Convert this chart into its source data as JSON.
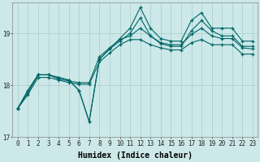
{
  "xlabel": "Humidex (Indice chaleur)",
  "bg_color": "#cce8e8",
  "line_color": "#006666",
  "grid_color": "#aacccc",
  "xlim": [
    -0.5,
    23.5
  ],
  "ylim": [
    17.0,
    19.6
  ],
  "yticks": [
    17,
    18,
    19
  ],
  "xtick_labels": [
    "0",
    "1",
    "2",
    "3",
    "4",
    "5",
    "6",
    "7",
    "8",
    "9",
    "10",
    "11",
    "12",
    "13",
    "14",
    "15",
    "16",
    "17",
    "18",
    "19",
    "20",
    "21",
    "22",
    "23"
  ],
  "series": [
    [
      17.55,
      17.9,
      18.2,
      18.2,
      18.15,
      18.1,
      17.9,
      17.3,
      18.5,
      18.7,
      18.9,
      19.1,
      19.5,
      19.1,
      18.9,
      18.85,
      18.85,
      19.25,
      19.4,
      19.1,
      19.1,
      19.1,
      18.85,
      18.85
    ],
    [
      17.55,
      17.9,
      18.2,
      18.2,
      18.15,
      18.1,
      17.9,
      17.3,
      18.5,
      18.7,
      18.85,
      19.0,
      19.3,
      18.95,
      18.8,
      18.75,
      18.75,
      19.05,
      19.25,
      19.05,
      18.95,
      18.95,
      18.75,
      18.75
    ],
    [
      17.55,
      17.85,
      18.2,
      18.2,
      18.12,
      18.08,
      18.05,
      18.05,
      18.55,
      18.72,
      18.88,
      18.95,
      19.1,
      18.95,
      18.82,
      18.78,
      18.78,
      18.98,
      19.1,
      18.95,
      18.9,
      18.9,
      18.72,
      18.7
    ],
    [
      17.55,
      17.82,
      18.15,
      18.15,
      18.1,
      18.05,
      18.02,
      18.02,
      18.45,
      18.62,
      18.78,
      18.88,
      18.88,
      18.78,
      18.72,
      18.68,
      18.68,
      18.82,
      18.88,
      18.78,
      18.78,
      18.78,
      18.6,
      18.6
    ]
  ],
  "marker": "+",
  "markersize": 3,
  "linewidth": 0.8,
  "tick_fontsize": 5.5,
  "xlabel_fontsize": 7
}
